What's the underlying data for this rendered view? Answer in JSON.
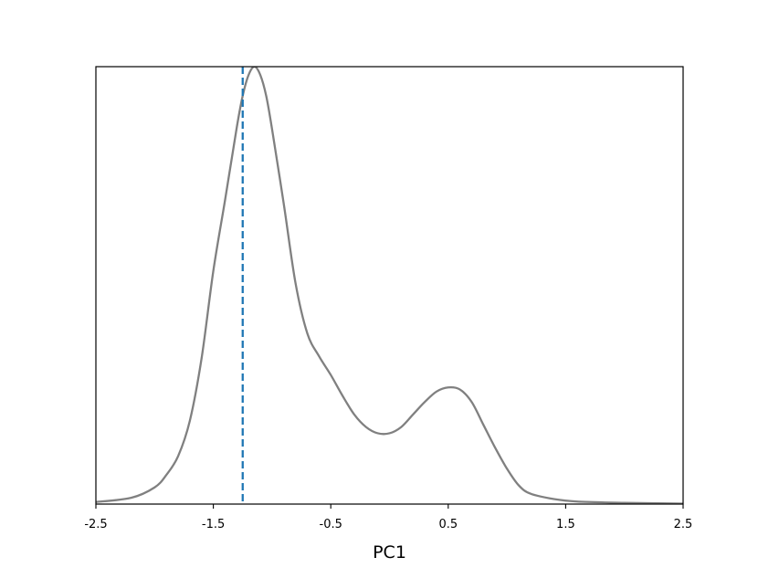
{
  "chart_data": {
    "type": "line",
    "title": "",
    "xlabel": "PC1",
    "ylabel": "",
    "xlim": [
      -2.5,
      2.5
    ],
    "ylim": [
      0,
      1.05
    ],
    "grid": false,
    "x_ticks": [
      -2.5,
      -1.5,
      -0.5,
      0.5,
      1.5,
      2.5
    ],
    "x_tick_labels": [
      "-2.5",
      "-1.5",
      "-0.5",
      "0.5",
      "1.5",
      "2.5"
    ],
    "show_y_ticks": false,
    "series": [
      {
        "color": "#808080",
        "x": [
          -2.5,
          -2.2,
          -2.0,
          -1.9,
          -1.8,
          -1.7,
          -1.6,
          -1.5,
          -1.4,
          -1.3,
          -1.25,
          -1.2,
          -1.15,
          -1.1,
          -1.05,
          -1.0,
          -0.9,
          -0.8,
          -0.7,
          -0.6,
          -0.5,
          -0.4,
          -0.3,
          -0.2,
          -0.1,
          0.0,
          0.1,
          0.2,
          0.3,
          0.4,
          0.5,
          0.6,
          0.7,
          0.8,
          0.9,
          1.0,
          1.1,
          1.2,
          1.4,
          1.6,
          2.0,
          2.5
        ],
        "values": [
          0.005,
          0.015,
          0.04,
          0.07,
          0.115,
          0.2,
          0.35,
          0.56,
          0.73,
          0.905,
          0.98,
          1.03,
          1.05,
          1.03,
          0.98,
          0.9,
          0.72,
          0.53,
          0.41,
          0.355,
          0.31,
          0.26,
          0.215,
          0.185,
          0.17,
          0.17,
          0.185,
          0.215,
          0.245,
          0.27,
          0.28,
          0.275,
          0.245,
          0.19,
          0.135,
          0.085,
          0.045,
          0.025,
          0.012,
          0.006,
          0.003,
          0.001
        ]
      }
    ],
    "vlines": [
      {
        "x": -1.25,
        "color": "#1f77b4",
        "style": "dashed"
      }
    ]
  }
}
